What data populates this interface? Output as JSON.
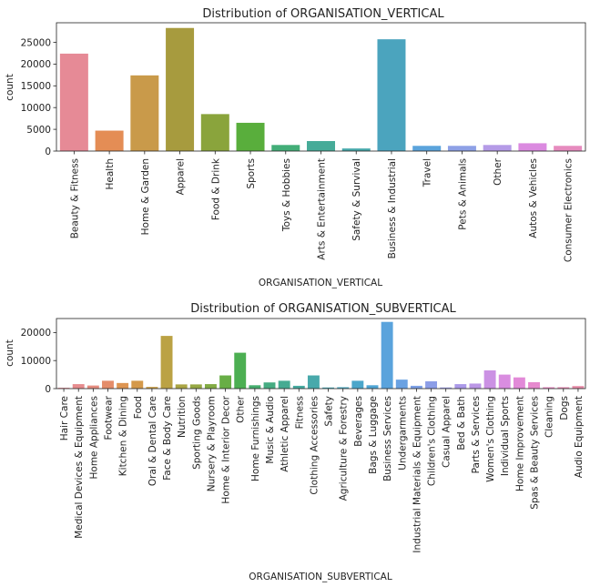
{
  "chart_data": [
    {
      "type": "bar",
      "title": "Distribution of ORGANISATION_VERTICAL",
      "xlabel": "ORGANISATION_VERTICAL",
      "ylabel": "count",
      "ylim": [
        0,
        29500
      ],
      "yticks": [
        0,
        5000,
        10000,
        15000,
        20000,
        25000
      ],
      "categories": [
        "Beauty & Fitness",
        "Health",
        "Home & Garden",
        "Apparel",
        "Food & Drink",
        "Sports",
        "Toys & Hobbies",
        "Arts & Entertainment",
        "Safety & Survival",
        "Business & Industrial",
        "Travel",
        "Pets & Animals",
        "Other",
        "Autos & Vehicles",
        "Consumer Electronics"
      ],
      "values": [
        22400,
        4700,
        17400,
        28300,
        8500,
        6500,
        1400,
        2300,
        600,
        25700,
        1200,
        1200,
        1400,
        1800,
        1200
      ],
      "colors": [
        "#e68a96",
        "#e48d55",
        "#c99a4a",
        "#a79b3e",
        "#8aa43c",
        "#59ae3c",
        "#43ae78",
        "#46ab98",
        "#48a9ab",
        "#4ba4be",
        "#5ba4dc",
        "#8ea1e6",
        "#b59be7",
        "#db8ae0",
        "#e68bbe"
      ]
    },
    {
      "type": "bar",
      "title": "Distribution of ORGANISATION_SUBVERTICAL",
      "xlabel": "ORGANISATION_SUBVERTICAL",
      "ylabel": "count",
      "ylim": [
        0,
        25000
      ],
      "yticks": [
        0,
        10000,
        20000
      ],
      "categories": [
        "Hair Care",
        "Medical Devices & Equipment",
        "Home Appliances",
        "Footwear",
        "Kitchen & Dining",
        "Food",
        "Oral & Dental Care",
        "Face & Body Care",
        "Nutrition",
        "Sporting Goods",
        "Nursery & Playroom",
        "Home & Interior Decor",
        "Other",
        "Home Furnishings",
        "Music & Audio",
        "Athletic Apparel",
        "Fitness",
        "Clothing Accessories",
        "Safety",
        "Agriculture & Forestry",
        "Beverages",
        "Bags & Luggage",
        "Business Services",
        "Undergarments",
        "Industrial Materials & Equipment",
        "Children's Clothing",
        "Casual Apparel",
        "Bed & Bath",
        "Parts & Services",
        "Women's Clothing",
        "Individual Sports",
        "Home Improvement",
        "Spas & Beauty Services",
        "Cleaning",
        "Dogs",
        "Audio Equipment"
      ],
      "values": [
        300,
        1600,
        1100,
        2800,
        2000,
        2800,
        600,
        18800,
        1500,
        1500,
        1600,
        4700,
        12800,
        1200,
        2200,
        2800,
        1000,
        4700,
        400,
        500,
        2800,
        1200,
        23800,
        3200,
        1000,
        2600,
        400,
        1600,
        1800,
        6500,
        5000,
        4000,
        2300,
        500,
        500,
        900
      ],
      "colors": [
        "#e68a96",
        "#e68c8e",
        "#e68d80",
        "#e48d6a",
        "#dd9552",
        "#d4994a",
        "#c99e48",
        "#bba244",
        "#aaa544",
        "#96a844",
        "#82ab44",
        "#68ae46",
        "#4caf52",
        "#46ae6e",
        "#46ac82",
        "#46ab92",
        "#47aaa0",
        "#48a9ab",
        "#49a8b6",
        "#4aa7c0",
        "#4ba6ca",
        "#4fa5d4",
        "#5aa3dc",
        "#6aa2e2",
        "#7ca0e6",
        "#8c9ee7",
        "#9c9ce8",
        "#ab99e8",
        "#bb96e6",
        "#cb91e4",
        "#d98de0",
        "#e28ad8",
        "#e68ace",
        "#e68bc2",
        "#e68bb4",
        "#e68aa6"
      ]
    }
  ]
}
